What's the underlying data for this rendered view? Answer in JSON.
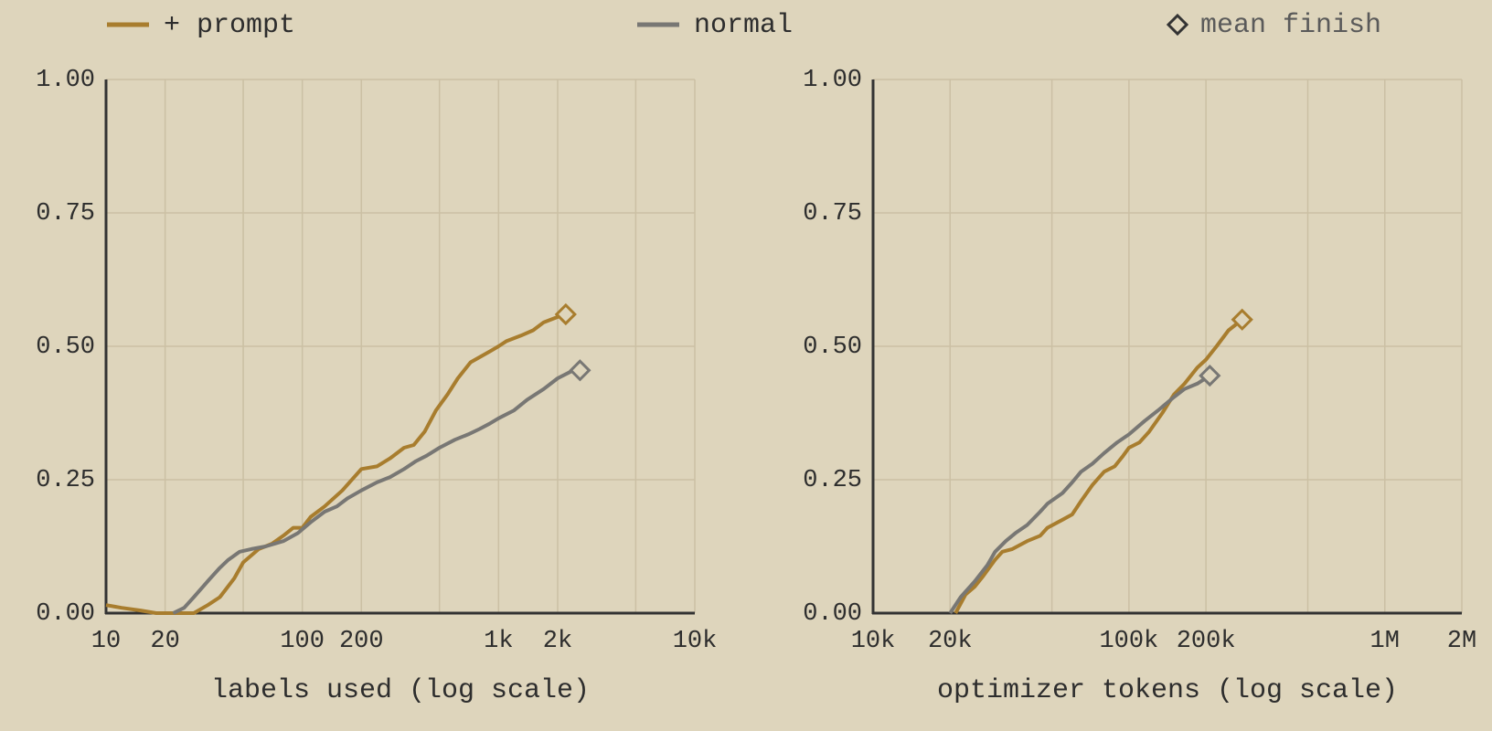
{
  "legend": {
    "marker_label": "mean finish"
  },
  "chart_data": [
    {
      "type": "line",
      "xlabel": "labels used (log scale)",
      "xscale": "log",
      "grid": true,
      "xlim": [
        10,
        10000
      ],
      "xticks": [
        10,
        20,
        100,
        200,
        {
          "value": 1000,
          "label": "1k"
        },
        {
          "value": 2000,
          "label": "2k"
        },
        {
          "value": 10000,
          "label": "10k"
        }
      ],
      "xgrid": [
        20,
        50,
        100,
        200,
        500,
        1000,
        2000,
        5000,
        10000
      ],
      "ylim": [
        0,
        1
      ],
      "yticks": [
        {
          "value": 0,
          "label": "0.00"
        },
        {
          "value": 0.25,
          "label": "0.25"
        },
        {
          "value": 0.5,
          "label": "0.50"
        },
        {
          "value": 0.75,
          "label": "0.75"
        },
        {
          "value": 1,
          "label": "1.00"
        }
      ],
      "series": [
        {
          "name": "+ prompt",
          "color": "#a87d2e",
          "x": [
            10,
            12,
            15,
            18,
            28,
            33,
            38,
            45,
            50,
            60,
            70,
            80,
            90,
            100,
            110,
            130,
            160,
            200,
            240,
            280,
            330,
            370,
            420,
            480,
            550,
            620,
            720,
            900,
            1000,
            1100,
            1300,
            1500,
            1700,
            2000,
            2200
          ],
          "values": [
            0.015,
            0.01,
            0.005,
            0,
            0,
            0.015,
            0.03,
            0.065,
            0.095,
            0.12,
            0.13,
            0.145,
            0.16,
            0.16,
            0.18,
            0.2,
            0.23,
            0.27,
            0.275,
            0.29,
            0.31,
            0.315,
            0.34,
            0.38,
            0.41,
            0.44,
            0.47,
            0.49,
            0.5,
            0.51,
            0.52,
            0.53,
            0.545,
            0.555,
            0.56
          ]
        },
        {
          "name": "normal",
          "color": "#787774",
          "x": [
            22,
            25,
            28,
            33,
            38,
            42,
            48,
            55,
            65,
            80,
            95,
            110,
            130,
            150,
            170,
            200,
            240,
            280,
            330,
            380,
            430,
            500,
            600,
            700,
            800,
            900,
            1000,
            1200,
            1400,
            1700,
            2000,
            2400,
            2600
          ],
          "values": [
            0,
            0.01,
            0.03,
            0.06,
            0.085,
            0.1,
            0.115,
            0.12,
            0.125,
            0.135,
            0.15,
            0.17,
            0.19,
            0.2,
            0.215,
            0.23,
            0.245,
            0.255,
            0.27,
            0.285,
            0.295,
            0.31,
            0.325,
            0.335,
            0.345,
            0.355,
            0.365,
            0.38,
            0.4,
            0.42,
            0.44,
            0.455,
            0.455
          ]
        }
      ]
    },
    {
      "type": "line",
      "xlabel": "optimizer tokens (log scale)",
      "xscale": "log",
      "grid": true,
      "xlim": [
        10000,
        2000000
      ],
      "xticks": [
        {
          "value": 10000,
          "label": "10k"
        },
        {
          "value": 20000,
          "label": "20k"
        },
        {
          "value": 100000,
          "label": "100k"
        },
        {
          "value": 200000,
          "label": "200k"
        },
        {
          "value": 1000000,
          "label": "1M"
        },
        {
          "value": 2000000,
          "label": "2M"
        }
      ],
      "xgrid": [
        20000,
        50000,
        100000,
        200000,
        500000,
        1000000,
        2000000
      ],
      "ylim": [
        0,
        1
      ],
      "yticks": [
        {
          "value": 0,
          "label": "0.00"
        },
        {
          "value": 0.25,
          "label": "0.25"
        },
        {
          "value": 0.5,
          "label": "0.50"
        },
        {
          "value": 0.75,
          "label": "0.75"
        },
        {
          "value": 1,
          "label": "1.00"
        }
      ],
      "series": [
        {
          "name": "+ prompt",
          "color": "#a87d2e",
          "x": [
            21000,
            23000,
            25000,
            27000,
            30000,
            32000,
            35000,
            40000,
            45000,
            48000,
            55000,
            60000,
            65000,
            72000,
            80000,
            88000,
            95000,
            100000,
            110000,
            120000,
            135000,
            150000,
            165000,
            185000,
            200000,
            220000,
            245000,
            277000
          ],
          "values": [
            0,
            0.035,
            0.05,
            0.07,
            0.1,
            0.115,
            0.12,
            0.135,
            0.145,
            0.16,
            0.175,
            0.185,
            0.21,
            0.24,
            0.265,
            0.275,
            0.295,
            0.31,
            0.32,
            0.34,
            0.375,
            0.41,
            0.43,
            0.46,
            0.475,
            0.5,
            0.53,
            0.55
          ]
        },
        {
          "name": "normal",
          "color": "#787774",
          "x": [
            20000,
            22000,
            25000,
            28000,
            30000,
            33000,
            36000,
            40000,
            45000,
            48000,
            55000,
            60000,
            65000,
            72000,
            80000,
            90000,
            100000,
            115000,
            130000,
            150000,
            165000,
            185000,
            207000
          ],
          "values": [
            0,
            0.03,
            0.06,
            0.09,
            0.115,
            0.135,
            0.15,
            0.165,
            0.19,
            0.205,
            0.225,
            0.245,
            0.265,
            0.28,
            0.3,
            0.32,
            0.335,
            0.36,
            0.38,
            0.405,
            0.42,
            0.43,
            0.445
          ]
        }
      ]
    }
  ]
}
